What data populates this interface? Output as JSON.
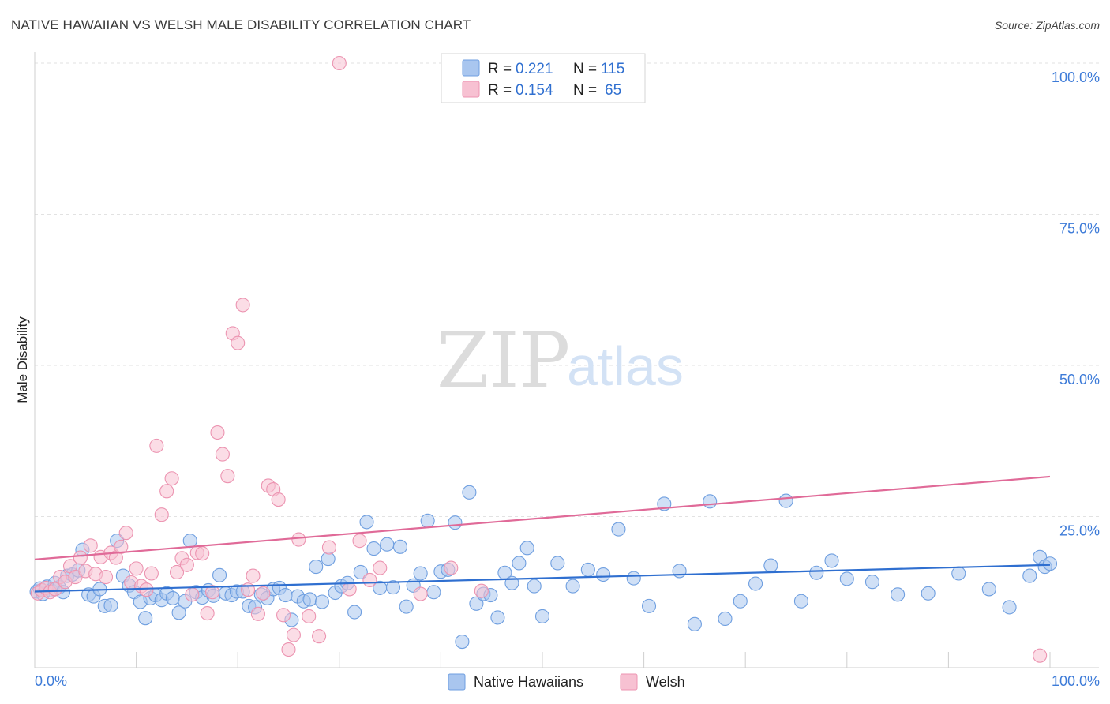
{
  "header": {
    "title": "NATIVE HAWAIIAN VS WELSH MALE DISABILITY CORRELATION CHART",
    "source": "Source: ZipAtlas.com"
  },
  "watermark": {
    "zip": "ZIP",
    "atlas": "atlas"
  },
  "legend_top": {
    "rows": [
      {
        "r_label": "R =",
        "r_value": "0.221",
        "n_label": "N =",
        "n_value": "115",
        "color": "#a9c6ef",
        "edge": "#6f9fe0"
      },
      {
        "r_label": "R =",
        "r_value": "0.154",
        "n_label": "N =",
        "n_value": "65",
        "color": "#f7c1d2",
        "edge": "#ec94b1"
      }
    ]
  },
  "legend_bottom": {
    "items": [
      {
        "label": "Native Hawaiians",
        "color": "#a9c6ef",
        "edge": "#6f9fe0"
      },
      {
        "label": "Welsh",
        "color": "#f7c1d2",
        "edge": "#ec94b1"
      }
    ]
  },
  "chart_data": {
    "type": "scatter",
    "title": "NATIVE HAWAIIAN VS WELSH MALE DISABILITY CORRELATION CHART",
    "xlabel": "",
    "ylabel": "Male Disability",
    "xlim": [
      0,
      100
    ],
    "ylim": [
      0,
      100
    ],
    "x_tick_labels": [
      "0.0%",
      "100.0%"
    ],
    "y_tick_labels": [
      "25.0%",
      "50.0%",
      "75.0%",
      "100.0%"
    ],
    "y_ticks": [
      25,
      50,
      75,
      100
    ],
    "grid": true,
    "legend_position": "top-center",
    "series": [
      {
        "name": "Native Hawaiians",
        "color": "#6f9fe0",
        "fill": "#a9c6ef",
        "line_color": "#2f6fd0",
        "trend": {
          "x": [
            0,
            100
          ],
          "y": [
            12.6,
            17.0
          ]
        },
        "x": [
          0.2,
          0.5,
          0.8,
          1.2,
          1.6,
          2.0,
          2.4,
          2.8,
          3.2,
          3.7,
          4.3,
          4.7,
          5.3,
          5.8,
          6.4,
          6.9,
          7.5,
          8.1,
          8.7,
          9.3,
          9.8,
          10.4,
          10.9,
          11.4,
          11.9,
          12.5,
          13.0,
          13.6,
          14.2,
          14.8,
          15.3,
          15.9,
          16.5,
          17.1,
          17.6,
          18.2,
          18.8,
          19.4,
          19.9,
          20.5,
          21.1,
          21.7,
          22.3,
          22.9,
          23.5,
          24.1,
          24.7,
          25.3,
          25.9,
          26.5,
          27.1,
          27.7,
          28.3,
          28.9,
          29.6,
          30.2,
          30.8,
          31.5,
          32.1,
          32.7,
          33.4,
          34.0,
          34.7,
          35.3,
          36.0,
          36.6,
          37.3,
          38.0,
          38.7,
          39.3,
          40.0,
          40.7,
          41.4,
          42.1,
          42.8,
          43.5,
          44.2,
          44.9,
          45.6,
          46.3,
          47.0,
          47.7,
          48.5,
          49.2,
          50.0,
          51.5,
          53.0,
          54.5,
          56.0,
          57.5,
          59.0,
          60.5,
          62.0,
          63.5,
          65.0,
          66.5,
          68.0,
          69.5,
          71.0,
          72.5,
          74.0,
          75.5,
          77.0,
          78.5,
          80.0,
          82.5,
          85.0,
          88.0,
          91.0,
          94.0,
          96.0,
          98.0,
          99.0,
          99.5,
          100.0
        ],
        "y": [
          12.6,
          13.1,
          12.2,
          13.4,
          12.8,
          14.0,
          13.3,
          12.5,
          15.2,
          15.4,
          16.1,
          19.5,
          12.1,
          11.8,
          13.0,
          10.2,
          10.3,
          21.0,
          15.2,
          13.6,
          12.5,
          10.9,
          8.2,
          11.5,
          12.0,
          11.2,
          12.3,
          11.5,
          9.1,
          11.0,
          21.0,
          12.5,
          11.6,
          12.8,
          11.9,
          15.3,
          12.3,
          12.0,
          12.6,
          12.6,
          10.2,
          10.0,
          12.1,
          11.5,
          13.0,
          13.2,
          12.0,
          7.9,
          11.8,
          11.0,
          11.3,
          16.7,
          10.9,
          18.0,
          12.4,
          13.5,
          14.0,
          9.2,
          15.8,
          24.1,
          19.7,
          13.2,
          20.4,
          13.3,
          20.0,
          10.1,
          13.6,
          15.6,
          24.3,
          12.5,
          15.9,
          16.2,
          24.0,
          4.3,
          29.0,
          10.6,
          12.2,
          12.0,
          8.3,
          15.7,
          14.0,
          17.3,
          19.8,
          13.5,
          8.5,
          17.3,
          13.5,
          16.2,
          15.4,
          22.9,
          14.8,
          10.2,
          27.1,
          16.0,
          7.2,
          27.5,
          8.1,
          11.0,
          13.9,
          16.9,
          27.6,
          11.0,
          15.7,
          17.7,
          14.7,
          14.2,
          12.1,
          12.3,
          15.6,
          13.0,
          10.0,
          15.2,
          18.3,
          16.7,
          17.2
        ]
      },
      {
        "name": "Welsh",
        "color": "#ec94b1",
        "fill": "#f7c1d2",
        "line_color": "#e06a98",
        "trend": {
          "x": [
            0,
            100
          ],
          "y": [
            17.9,
            31.6
          ]
        },
        "x": [
          0.3,
          0.7,
          1.1,
          1.5,
          2.0,
          2.5,
          3.0,
          3.5,
          4.0,
          4.5,
          5.0,
          5.5,
          6.0,
          6.5,
          7.0,
          7.5,
          8.0,
          8.5,
          9.0,
          9.5,
          10.0,
          10.5,
          11.0,
          11.5,
          12.0,
          12.5,
          13.0,
          13.5,
          14.0,
          14.5,
          15.0,
          15.5,
          16.0,
          16.5,
          17.0,
          17.5,
          18.0,
          18.5,
          19.0,
          19.5,
          20.0,
          20.5,
          21.0,
          21.5,
          22.0,
          22.5,
          23.0,
          23.5,
          24.0,
          24.5,
          25.0,
          25.5,
          26.0,
          27.0,
          28.0,
          29.0,
          30.0,
          31.0,
          32.0,
          33.0,
          34.0,
          38.0,
          41.0,
          44.0,
          99.0
        ],
        "y": [
          12.3,
          12.8,
          13.2,
          12.5,
          13.0,
          15.0,
          14.2,
          16.8,
          15.0,
          18.2,
          16.0,
          20.2,
          15.5,
          18.3,
          15.0,
          19.0,
          18.2,
          20.0,
          22.3,
          14.1,
          16.4,
          13.5,
          12.9,
          15.6,
          36.7,
          25.3,
          29.2,
          31.3,
          15.8,
          18.1,
          17.0,
          12.1,
          19.0,
          18.9,
          9.0,
          12.5,
          38.9,
          35.3,
          31.7,
          55.3,
          53.7,
          60.0,
          12.9,
          15.2,
          8.9,
          12.3,
          30.1,
          29.5,
          27.8,
          8.7,
          3.0,
          5.4,
          21.2,
          8.5,
          5.2,
          19.9,
          100.0,
          13.0,
          21.0,
          14.5,
          16.5,
          12.2,
          16.5,
          12.7,
          2.0
        ]
      }
    ]
  }
}
